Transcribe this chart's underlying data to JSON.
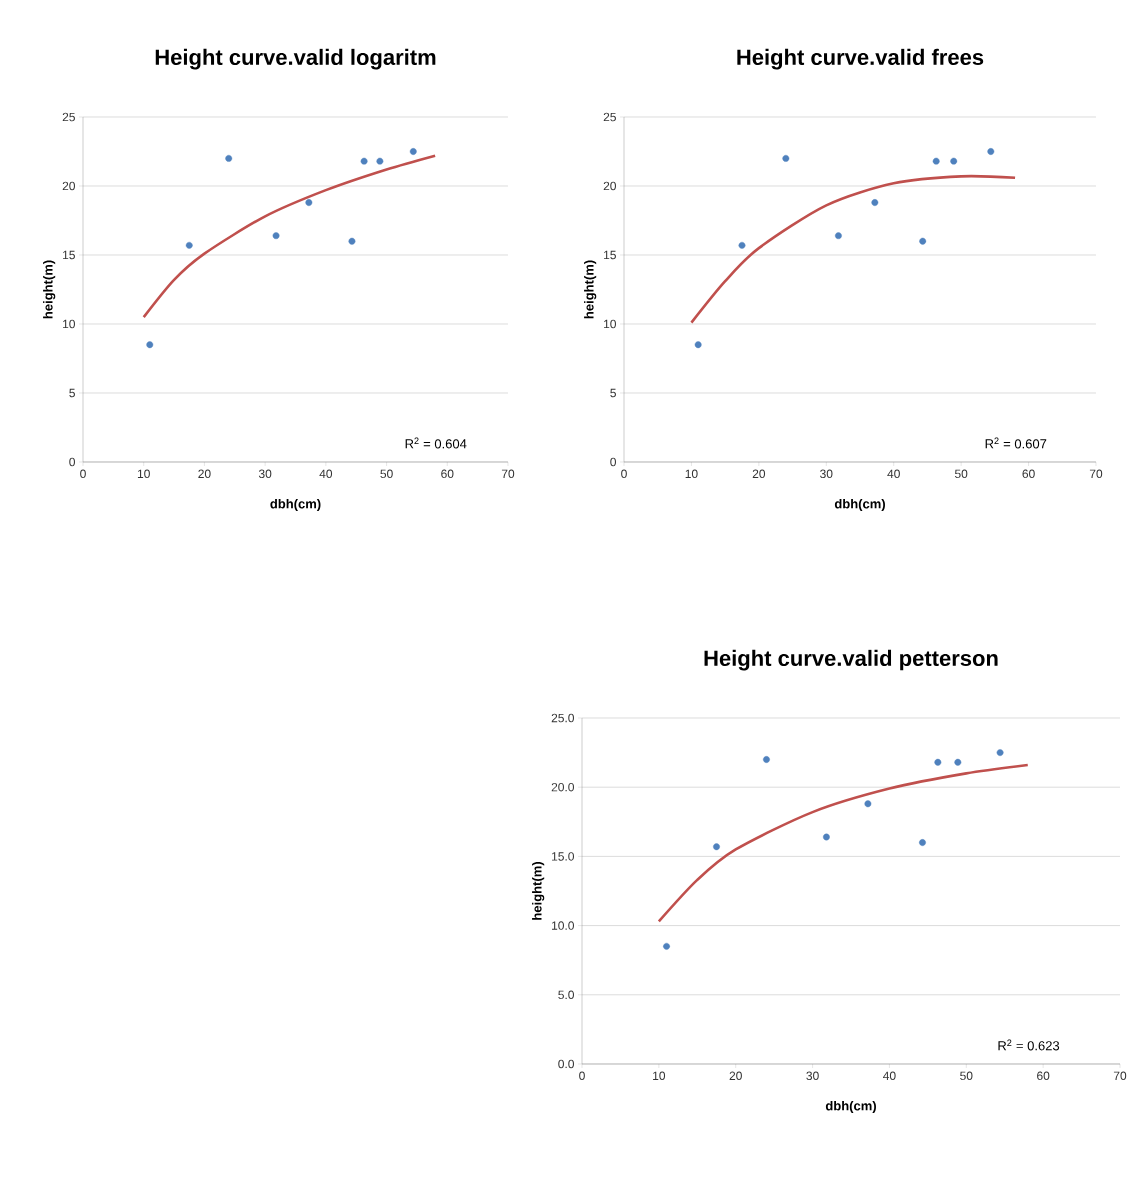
{
  "chart_data": [
    {
      "type": "scatter",
      "title": "Height curve.valid logaritm",
      "xlabel": "dbh(cm)",
      "ylabel": "height(m)",
      "xlim": [
        0,
        70
      ],
      "ylim": [
        0,
        25
      ],
      "xticks": [
        0,
        10,
        20,
        30,
        40,
        50,
        60,
        70
      ],
      "yticks": [
        0,
        5,
        10,
        15,
        20,
        25
      ],
      "grid": "y",
      "annotations": [
        "R$^{2}$ = 0.604"
      ],
      "series": [
        {
          "type": "scatter",
          "marker": "circle",
          "color": "#4f81bd",
          "x": [
            11.0,
            17.5,
            24.0,
            31.8,
            37.2,
            44.3,
            46.3,
            48.9,
            54.4
          ],
          "values": [
            8.5,
            15.7,
            22.0,
            16.4,
            18.8,
            16.0,
            21.8,
            21.8,
            22.5
          ]
        },
        {
          "type": "line",
          "marker": "none",
          "color": "#c0504d",
          "x": [
            10,
            15,
            20,
            30,
            40,
            50,
            58
          ],
          "values": [
            10.5,
            13.2,
            15.1,
            17.8,
            19.7,
            21.2,
            22.2
          ]
        }
      ]
    },
    {
      "type": "scatter",
      "title": "Height curve.valid frees",
      "xlabel": "dbh(cm)",
      "ylabel": "height(m)",
      "xlim": [
        0,
        70
      ],
      "ylim": [
        0,
        25
      ],
      "xticks": [
        0,
        10,
        20,
        30,
        40,
        50,
        60,
        70
      ],
      "yticks": [
        0,
        5,
        10,
        15,
        20,
        25
      ],
      "grid": "y",
      "annotations": [
        "R$^{2}$ = 0.607"
      ],
      "series": [
        {
          "type": "scatter",
          "marker": "circle",
          "color": "#4f81bd",
          "x": [
            11.0,
            17.5,
            24.0,
            31.8,
            37.2,
            44.3,
            46.3,
            48.9,
            54.4
          ],
          "values": [
            8.5,
            15.7,
            22.0,
            16.4,
            18.8,
            16.0,
            21.8,
            21.8,
            22.5
          ]
        },
        {
          "type": "line",
          "marker": "none",
          "color": "#c0504d",
          "x": [
            10,
            15,
            20,
            30,
            40,
            50,
            58
          ],
          "values": [
            10.1,
            13.1,
            15.5,
            18.6,
            20.2,
            20.7,
            20.6
          ]
        }
      ]
    },
    {
      "type": "scatter",
      "title": "Height curve.valid petterson",
      "xlabel": "dbh(cm)",
      "ylabel": "height(m)",
      "xlim": [
        0,
        70
      ],
      "ylim": [
        0,
        25
      ],
      "xticks": [
        0,
        10,
        20,
        30,
        40,
        50,
        60,
        70
      ],
      "yticks": [
        {
          "value": 0,
          "label": "0.0"
        },
        {
          "value": 5,
          "label": "5.0"
        },
        {
          "value": 10,
          "label": "10.0"
        },
        {
          "value": 15,
          "label": "15.0"
        },
        {
          "value": 20,
          "label": "20.0"
        },
        {
          "value": 25,
          "label": "25.0"
        }
      ],
      "grid": "y",
      "annotations": [
        "R$^{2}$ = 0.623"
      ],
      "series": [
        {
          "type": "scatter",
          "marker": "circle",
          "color": "#4f81bd",
          "x": [
            11.0,
            17.5,
            24.0,
            31.8,
            37.2,
            44.3,
            46.3,
            48.9,
            54.4
          ],
          "values": [
            8.5,
            15.7,
            22.0,
            16.4,
            18.8,
            16.0,
            21.8,
            21.8,
            22.5
          ]
        },
        {
          "type": "line",
          "marker": "none",
          "color": "#c0504d",
          "x": [
            10,
            15,
            20,
            30,
            40,
            50,
            58
          ],
          "values": [
            10.3,
            13.3,
            15.5,
            18.2,
            19.9,
            21.0,
            21.6
          ]
        }
      ]
    }
  ]
}
